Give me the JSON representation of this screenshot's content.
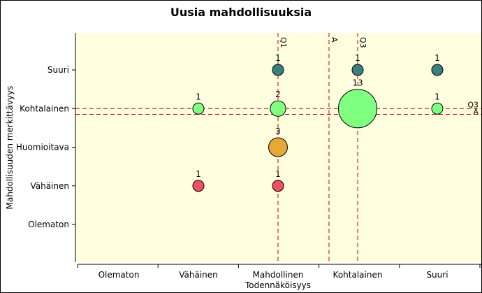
{
  "chart_data": {
    "type": "bubble",
    "title": "Uusia mahdollisuuksia",
    "xlabel": "Todennäköisyys",
    "ylabel": "Mahdollisuuden merkittävyys",
    "x_categories": [
      "Olematon",
      "Vähäinen",
      "Mahdollinen",
      "Kohtalainen",
      "Suuri"
    ],
    "y_categories": [
      "Olematon",
      "Vähäinen",
      "Huomioitava",
      "Kohtalainen",
      "Suuri"
    ],
    "background": "#ffffe0",
    "grid": false,
    "points": [
      {
        "x": "Mahdollinen",
        "y": "Suuri",
        "count": 1,
        "color": "#3d7f7f"
      },
      {
        "x": "Kohtalainen",
        "y": "Suuri",
        "count": 1,
        "color": "#3d7f7f"
      },
      {
        "x": "Suuri",
        "y": "Suuri",
        "count": 1,
        "color": "#3d7f7f"
      },
      {
        "x": "Vähäinen",
        "y": "Kohtalainen",
        "count": 1,
        "color": "#80ff80"
      },
      {
        "x": "Mahdollinen",
        "y": "Kohtalainen",
        "count": 2,
        "color": "#80ff80"
      },
      {
        "x": "Kohtalainen",
        "y": "Kohtalainen",
        "count": 13,
        "color": "#80ff80"
      },
      {
        "x": "Suuri",
        "y": "Kohtalainen",
        "count": 1,
        "color": "#80ff80"
      },
      {
        "x": "Mahdollinen",
        "y": "Huomioitava",
        "count": 3,
        "color": "#e8a838"
      },
      {
        "x": "Vähäinen",
        "y": "Vähäinen",
        "count": 1,
        "color": "#f05060"
      },
      {
        "x": "Mahdollinen",
        "y": "Vähäinen",
        "count": 1,
        "color": "#f05060"
      }
    ],
    "reference_lines": {
      "vertical": [
        {
          "label": "Q1",
          "x": 3.0
        },
        {
          "label": "A",
          "x": 3.64
        },
        {
          "label": "Q3",
          "x": 4.0
        }
      ],
      "horizontal": [
        {
          "label": "Q3",
          "y": 4.0
        },
        {
          "label": "A",
          "y": 3.85
        }
      ],
      "color": "#cc0000"
    }
  }
}
